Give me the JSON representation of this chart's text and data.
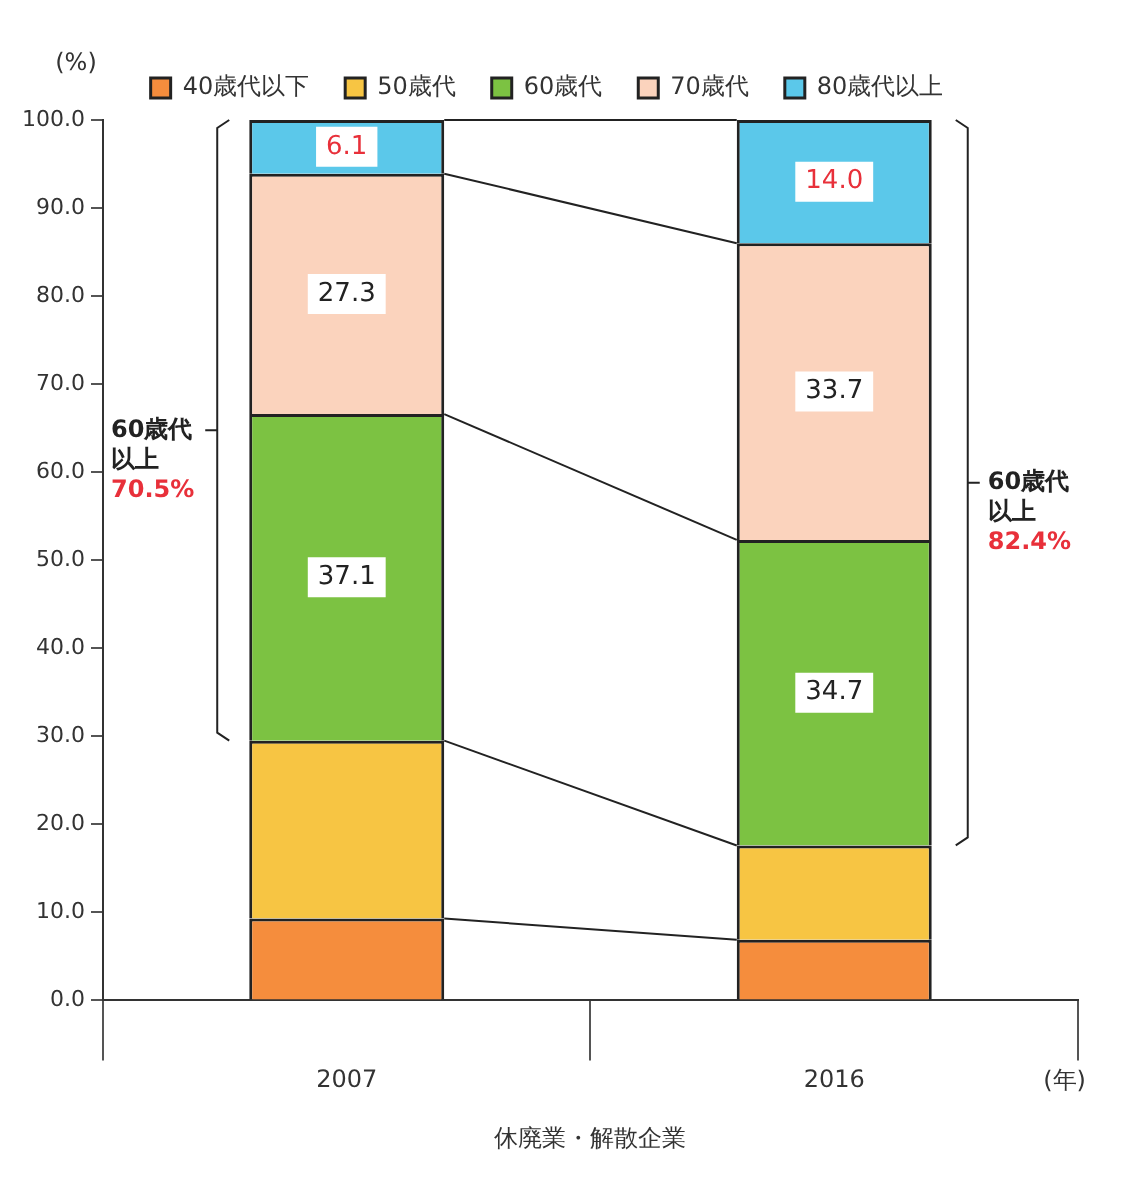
{
  "chart_data": {
    "type": "bar",
    "stacked": true,
    "xlabel": "休廃業・解散企業",
    "ylabel": "(%)",
    "categories": [
      "2007",
      "2016"
    ],
    "series": [
      {
        "name": "40歳代以下",
        "color": "#f58d3d",
        "values": [
          9.3,
          6.9
        ]
      },
      {
        "name": "50歳代",
        "color": "#f7c543",
        "values": [
          20.2,
          10.7
        ]
      },
      {
        "name": "60歳代",
        "color": "#7cc242",
        "values": [
          37.1,
          34.7
        ],
        "value_labels": [
          "37.1",
          "34.7"
        ]
      },
      {
        "name": "70歳代",
        "color": "#fbd3bd",
        "values": [
          27.3,
          33.7
        ],
        "value_labels": [
          "27.3",
          "33.7"
        ]
      },
      {
        "name": "80歳代以上",
        "color": "#5bc8ea",
        "values": [
          6.1,
          14.0
        ],
        "value_labels": [
          "6.1",
          "14.0"
        ]
      }
    ],
    "ylim": [
      0,
      100
    ],
    "yticks": [
      {
        "value": 0,
        "label": "0.0"
      },
      {
        "value": 10,
        "label": "10.0"
      },
      {
        "value": 20,
        "label": "20.0"
      },
      {
        "value": 30,
        "label": "30.0"
      },
      {
        "value": 40,
        "label": "40.0"
      },
      {
        "value": 50,
        "label": "50.0"
      },
      {
        "value": 60,
        "label": "60.0"
      },
      {
        "value": 70,
        "label": "70.0"
      },
      {
        "value": 80,
        "label": "80.0"
      },
      {
        "value": 90,
        "label": "90.0"
      },
      {
        "value": 100,
        "label": "100.0"
      }
    ],
    "grid": false,
    "legend": "top",
    "annotations": [
      "60歳代",
      "以上",
      "70.5%",
      "60歳代",
      "以上",
      "82.4%",
      "(年)"
    ]
  }
}
